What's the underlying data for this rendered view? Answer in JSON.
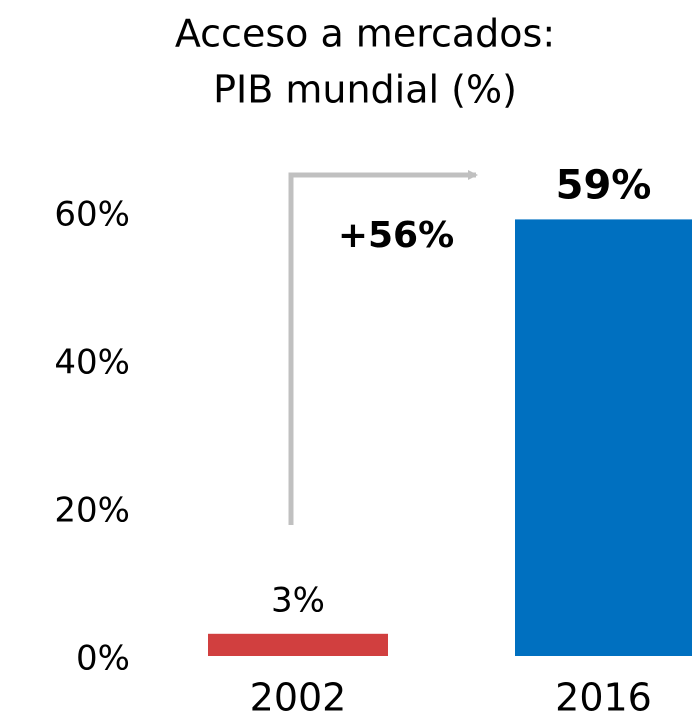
{
  "chart_data": {
    "type": "bar",
    "title": [
      "Acceso a mercados:",
      "PIB mundial (%)"
    ],
    "categories": [
      "2002",
      "2016"
    ],
    "values": [
      3,
      59
    ],
    "value_labels": [
      "3%",
      "59%"
    ],
    "colors": [
      "#d13f3f",
      "#0070c0"
    ],
    "ylim": [
      0,
      60
    ],
    "yticks": [
      {
        "value": 0,
        "label": "0%"
      },
      {
        "value": 20,
        "label": "20%"
      },
      {
        "value": 40,
        "label": "40%"
      },
      {
        "value": 60,
        "label": "60%"
      }
    ],
    "grid": false,
    "annotation": "+56%"
  }
}
